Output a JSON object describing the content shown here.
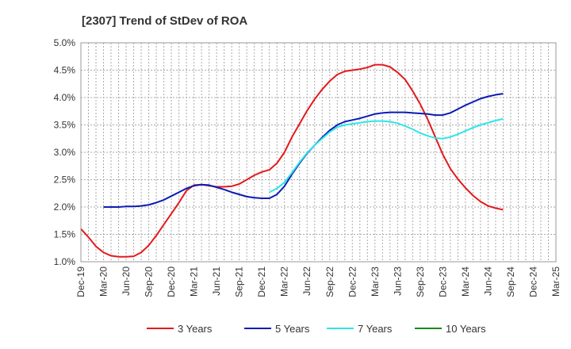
{
  "chart_data": {
    "type": "line",
    "title": "[2307]  Trend of StDev of ROA",
    "xlabel": "",
    "ylabel": "",
    "x_ticks": [
      "Dec-19",
      "Mar-20",
      "Jun-20",
      "Sep-20",
      "Dec-20",
      "Mar-21",
      "Jun-21",
      "Sep-21",
      "Dec-21",
      "Mar-22",
      "Jun-22",
      "Sep-22",
      "Dec-22",
      "Mar-23",
      "Jun-23",
      "Sep-23",
      "Dec-23",
      "Mar-24",
      "Jun-24",
      "Sep-24",
      "Dec-24",
      "Mar-25"
    ],
    "y_ticks": [
      "1.0%",
      "1.5%",
      "2.0%",
      "2.5%",
      "3.0%",
      "3.5%",
      "4.0%",
      "4.5%",
      "5.0%"
    ],
    "ylim": [
      1.0,
      5.0
    ],
    "y_unit": "%",
    "grid": true,
    "legend_position": "bottom",
    "series": [
      {
        "name": "3 Years",
        "color": "#e31a1c",
        "points": [
          [
            0,
            1.6
          ],
          [
            1,
            1.45
          ],
          [
            2,
            1.28
          ],
          [
            3,
            1.17
          ],
          [
            4,
            1.11
          ],
          [
            5,
            1.09
          ],
          [
            6,
            1.09
          ],
          [
            7,
            1.1
          ],
          [
            8,
            1.17
          ],
          [
            9,
            1.3
          ],
          [
            10,
            1.48
          ],
          [
            11,
            1.68
          ],
          [
            12,
            1.88
          ],
          [
            13,
            2.08
          ],
          [
            14,
            2.3
          ],
          [
            15,
            2.4
          ],
          [
            16,
            2.41
          ],
          [
            17,
            2.39
          ],
          [
            18,
            2.37
          ],
          [
            19,
            2.37
          ],
          [
            20,
            2.38
          ],
          [
            21,
            2.42
          ],
          [
            22,
            2.5
          ],
          [
            23,
            2.58
          ],
          [
            24,
            2.64
          ],
          [
            25,
            2.68
          ],
          [
            26,
            2.8
          ],
          [
            27,
            3.0
          ],
          [
            28,
            3.28
          ],
          [
            29,
            3.52
          ],
          [
            30,
            3.76
          ],
          [
            31,
            3.97
          ],
          [
            32,
            4.15
          ],
          [
            33,
            4.3
          ],
          [
            34,
            4.42
          ],
          [
            35,
            4.48
          ],
          [
            36,
            4.5
          ],
          [
            37,
            4.52
          ],
          [
            38,
            4.55
          ],
          [
            39,
            4.6
          ],
          [
            40,
            4.6
          ],
          [
            41,
            4.56
          ],
          [
            42,
            4.46
          ],
          [
            43,
            4.33
          ],
          [
            44,
            4.12
          ],
          [
            45,
            3.88
          ],
          [
            46,
            3.6
          ],
          [
            47,
            3.28
          ],
          [
            48,
            2.96
          ],
          [
            49,
            2.7
          ],
          [
            50,
            2.51
          ],
          [
            51,
            2.35
          ],
          [
            52,
            2.21
          ],
          [
            53,
            2.1
          ],
          [
            54,
            2.02
          ],
          [
            55,
            1.98
          ],
          [
            56,
            1.95
          ]
        ]
      },
      {
        "name": "5 Years",
        "color": "#0a1cb5",
        "points": [
          [
            3,
            2.0
          ],
          [
            4,
            2.0
          ],
          [
            5,
            2.0
          ],
          [
            6,
            2.01
          ],
          [
            7,
            2.01
          ],
          [
            8,
            2.02
          ],
          [
            9,
            2.04
          ],
          [
            10,
            2.08
          ],
          [
            11,
            2.13
          ],
          [
            12,
            2.2
          ],
          [
            13,
            2.27
          ],
          [
            14,
            2.34
          ],
          [
            15,
            2.39
          ],
          [
            16,
            2.41
          ],
          [
            17,
            2.4
          ],
          [
            18,
            2.36
          ],
          [
            19,
            2.32
          ],
          [
            20,
            2.27
          ],
          [
            21,
            2.23
          ],
          [
            22,
            2.19
          ],
          [
            23,
            2.17
          ],
          [
            24,
            2.16
          ],
          [
            25,
            2.16
          ],
          [
            26,
            2.23
          ],
          [
            27,
            2.38
          ],
          [
            28,
            2.6
          ],
          [
            29,
            2.8
          ],
          [
            30,
            2.98
          ],
          [
            31,
            3.13
          ],
          [
            32,
            3.27
          ],
          [
            33,
            3.4
          ],
          [
            34,
            3.5
          ],
          [
            35,
            3.56
          ],
          [
            36,
            3.59
          ],
          [
            37,
            3.62
          ],
          [
            38,
            3.66
          ],
          [
            39,
            3.7
          ],
          [
            40,
            3.72
          ],
          [
            41,
            3.73
          ],
          [
            42,
            3.73
          ],
          [
            43,
            3.73
          ],
          [
            44,
            3.72
          ],
          [
            45,
            3.71
          ],
          [
            46,
            3.7
          ],
          [
            47,
            3.68
          ],
          [
            48,
            3.68
          ],
          [
            49,
            3.72
          ],
          [
            50,
            3.79
          ],
          [
            51,
            3.86
          ],
          [
            52,
            3.92
          ],
          [
            53,
            3.98
          ],
          [
            54,
            4.02
          ],
          [
            55,
            4.05
          ],
          [
            56,
            4.07
          ]
        ]
      },
      {
        "name": "7 Years",
        "color": "#2ee6e6",
        "points": [
          [
            25,
            2.27
          ],
          [
            26,
            2.34
          ],
          [
            27,
            2.45
          ],
          [
            28,
            2.63
          ],
          [
            29,
            2.82
          ],
          [
            30,
            2.99
          ],
          [
            31,
            3.13
          ],
          [
            32,
            3.25
          ],
          [
            33,
            3.37
          ],
          [
            34,
            3.46
          ],
          [
            35,
            3.5
          ],
          [
            36,
            3.52
          ],
          [
            37,
            3.54
          ],
          [
            38,
            3.56
          ],
          [
            39,
            3.57
          ],
          [
            40,
            3.57
          ],
          [
            41,
            3.56
          ],
          [
            42,
            3.53
          ],
          [
            43,
            3.48
          ],
          [
            44,
            3.42
          ],
          [
            45,
            3.35
          ],
          [
            46,
            3.3
          ],
          [
            47,
            3.26
          ],
          [
            48,
            3.25
          ],
          [
            49,
            3.28
          ],
          [
            50,
            3.33
          ],
          [
            51,
            3.39
          ],
          [
            52,
            3.45
          ],
          [
            53,
            3.5
          ],
          [
            54,
            3.54
          ],
          [
            55,
            3.58
          ],
          [
            56,
            3.61
          ]
        ]
      },
      {
        "name": "10 Years",
        "color": "#1a8a1a",
        "points": []
      }
    ]
  }
}
